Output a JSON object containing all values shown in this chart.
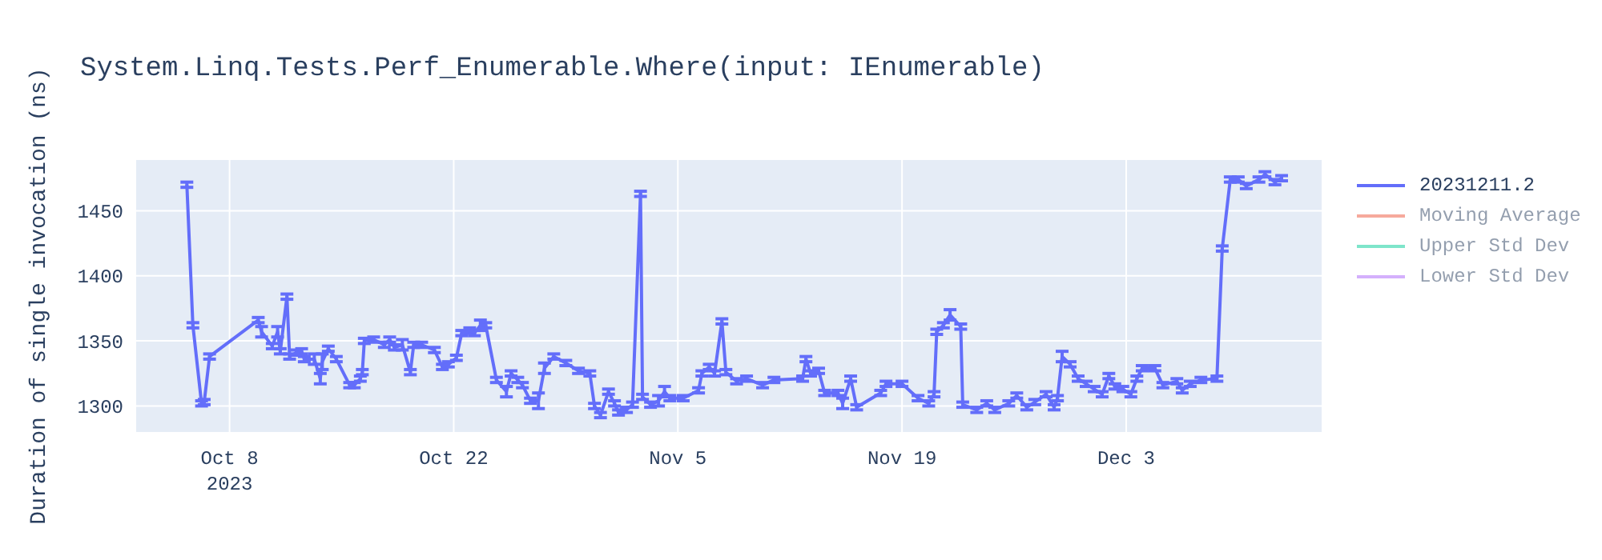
{
  "chart_data": {
    "type": "line",
    "title": "System.Linq.Tests.Perf_Enumerable.Where(input: IEnumerable)",
    "ylabel": "Duration of single invocation (ns)",
    "xlim": [
      "2023-10-02T04:00",
      "2023-12-15T05:00"
    ],
    "xticks": [
      {
        "value": "2023-10-08",
        "label": "Oct 8\n2023"
      },
      {
        "value": "2023-10-22",
        "label": "Oct 22"
      },
      {
        "value": "2023-11-05",
        "label": "Nov 5"
      },
      {
        "value": "2023-11-19",
        "label": "Nov 19"
      },
      {
        "value": "2023-12-03",
        "label": "Dec 3"
      }
    ],
    "ylim": [
      1280,
      1489
    ],
    "yticks": [
      1300,
      1350,
      1400,
      1450
    ],
    "grid": true,
    "legend": "top right",
    "series": [
      {
        "name": "20231211.2",
        "color": "#636efa",
        "x": [
          "2023-10-05T08:00",
          "2023-10-05T17:00",
          "2023-10-06T06:00",
          "2023-10-06T10:00",
          "2023-10-06T18:00",
          "2023-10-09T19:00",
          "2023-10-10T00:00",
          "2023-10-10T16:00",
          "2023-10-11T00:00",
          "2023-10-11T04:00",
          "2023-10-11T14:00",
          "2023-10-11T18:00",
          "2023-10-12T04:00",
          "2023-10-12T12:00",
          "2023-10-12T16:00",
          "2023-10-13T07:00",
          "2023-10-13T16:00",
          "2023-10-13T19:00",
          "2023-10-14T04:00",
          "2023-10-14T16:00",
          "2023-10-15T12:00",
          "2023-10-15T19:00",
          "2023-10-16T04:00",
          "2023-10-16T07:00",
          "2023-10-16T10:00",
          "2023-10-17T00:00",
          "2023-10-17T16:00",
          "2023-10-18T00:00",
          "2023-10-18T07:00",
          "2023-10-18T19:00",
          "2023-10-19T07:00",
          "2023-10-19T12:00",
          "2023-10-20T00:00",
          "2023-10-20T19:00",
          "2023-10-21T07:00",
          "2023-10-21T16:00",
          "2023-10-22T04:00",
          "2023-10-22T12:00",
          "2023-10-23T00:00",
          "2023-10-23T07:00",
          "2023-10-23T16:00",
          "2023-10-24T00:00",
          "2023-10-24T16:00",
          "2023-10-25T07:00",
          "2023-10-25T14:00",
          "2023-10-26T00:00",
          "2023-10-26T07:00",
          "2023-10-26T19:00",
          "2023-10-27T07:00",
          "2023-10-27T16:00",
          "2023-10-28T06:00",
          "2023-10-29T00:00",
          "2023-10-29T19:00",
          "2023-10-30T12:00",
          "2023-10-30T19:00",
          "2023-10-31T04:00",
          "2023-10-31T16:00",
          "2023-11-01T01:00",
          "2023-11-01T07:00",
          "2023-11-01T19:00",
          "2023-11-02T04:00",
          "2023-11-02T16:00",
          "2023-11-02T19:00",
          "2023-11-03T07:00",
          "2023-11-03T19:00",
          "2023-11-04T04:00",
          "2023-11-04T12:00",
          "2023-11-05T08:00",
          "2023-11-06T07:00",
          "2023-11-06T12:00",
          "2023-11-06T23:00",
          "2023-11-07T07:00",
          "2023-11-07T18:00",
          "2023-11-08T00:00",
          "2023-11-08T16:00",
          "2023-11-09T07:00",
          "2023-11-10T07:00",
          "2023-11-11T00:00",
          "2023-11-12T19:00",
          "2023-11-13T00:00",
          "2023-11-13T07:00",
          "2023-11-13T19:00",
          "2023-11-14T04:00",
          "2023-11-15T00:00",
          "2023-11-15T07:00",
          "2023-11-15T19:00",
          "2023-11-16T04:00",
          "2023-11-17T16:00",
          "2023-11-18T00:00",
          "2023-11-19T00:00",
          "2023-11-20T00:00",
          "2023-11-20T16:00",
          "2023-11-21T00:00",
          "2023-11-21T04:00",
          "2023-11-21T14:00",
          "2023-11-22T00:00",
          "2023-11-22T16:00",
          "2023-11-22T19:00",
          "2023-11-23T16:00",
          "2023-11-24T07:00",
          "2023-11-24T19:00",
          "2023-11-25T16:00",
          "2023-11-26T04:00",
          "2023-11-26T19:00",
          "2023-11-27T07:00",
          "2023-11-28T00:00",
          "2023-11-28T12:00",
          "2023-11-28T17:00",
          "2023-11-29T00:00",
          "2023-11-29T12:00",
          "2023-11-30T00:00",
          "2023-11-30T12:00",
          "2023-12-01T00:00",
          "2023-12-01T12:00",
          "2023-12-01T22:00",
          "2023-12-02T07:00",
          "2023-12-02T19:00",
          "2023-12-03T07:00",
          "2023-12-03T16:00",
          "2023-12-04T00:00",
          "2023-12-04T19:00",
          "2023-12-05T07:00",
          "2023-12-06T04:00",
          "2023-12-06T12:00",
          "2023-12-07T00:00",
          "2023-12-07T16:00",
          "2023-12-08T16:00",
          "2023-12-09T00:00",
          "2023-12-09T12:00",
          "2023-12-10T00:00",
          "2023-12-10T12:00",
          "2023-12-11T07:00",
          "2023-12-11T16:00",
          "2023-12-12T07:00",
          "2023-12-12T17:00"
        ],
        "values": [
          1470,
          1362,
          1302,
          1303,
          1338,
          1366,
          1357,
          1346,
          1357,
          1342,
          1384,
          1338,
          1341,
          1342,
          1336,
          1336,
          1321,
          1334,
          1344,
          1336,
          1316,
          1316,
          1321,
          1326,
          1350,
          1351,
          1347,
          1351,
          1345,
          1347,
          1326,
          1347,
          1347,
          1343,
          1330,
          1332,
          1337,
          1356,
          1358,
          1356,
          1362,
          1362,
          1320,
          1311,
          1325,
          1320,
          1316,
          1304,
          1304,
          1329,
          1338,
          1333,
          1327,
          1325,
          1300,
          1293,
          1311,
          1302,
          1295,
          1297,
          1301,
          1463,
          1307,
          1301,
          1304,
          1311,
          1306,
          1306,
          1312,
          1325,
          1330,
          1325,
          1365,
          1326,
          1319,
          1321,
          1316,
          1320,
          1321,
          1336,
          1325,
          1327,
          1310,
          1310,
          1302,
          1321,
          1299,
          1310,
          1317,
          1317,
          1306,
          1302,
          1309,
          1357,
          1362,
          1370,
          1361,
          1301,
          1297,
          1302,
          1297,
          1302,
          1308,
          1299,
          1303,
          1309,
          1299,
          1306,
          1338,
          1332,
          1321,
          1317,
          1313,
          1309,
          1323,
          1315,
          1313,
          1309,
          1321,
          1329,
          1329,
          1316,
          1319,
          1312,
          1317,
          1320,
          1321,
          1421,
          1474,
          1474,
          1469,
          1474,
          1478,
          1472,
          1475
        ],
        "errors": [
          2,
          2,
          2,
          2,
          2,
          2,
          4,
          2,
          4,
          2,
          2,
          2,
          2,
          2,
          2,
          4,
          4,
          6,
          2,
          2,
          2,
          2,
          2,
          2,
          2,
          2,
          2,
          2,
          2,
          4,
          2,
          2,
          2,
          2,
          2,
          2,
          2,
          2,
          2,
          2,
          4,
          2,
          2,
          4,
          2,
          2,
          2,
          2,
          6,
          4,
          2,
          2,
          2,
          2,
          2,
          2,
          2,
          2,
          2,
          2,
          2,
          2,
          2,
          2,
          4,
          4,
          2,
          2,
          2,
          2,
          2,
          2,
          2,
          2,
          2,
          2,
          2,
          2,
          2,
          2,
          2,
          2,
          2,
          2,
          4,
          2,
          2,
          2,
          2,
          2,
          2,
          2,
          2,
          2,
          2,
          4,
          2,
          2,
          2,
          2,
          2,
          2,
          2,
          2,
          2,
          2,
          2,
          2,
          4,
          2,
          2,
          2,
          2,
          2,
          2,
          2,
          2,
          2,
          2,
          2,
          2,
          2,
          2,
          2,
          2,
          2,
          2,
          2,
          2,
          2,
          2,
          2,
          2,
          2,
          2
        ]
      },
      {
        "name": "Moving Average",
        "color": "#ef553b"
      },
      {
        "name": "Upper Std Dev",
        "color": "#00cc96"
      },
      {
        "name": "Lower Std Dev",
        "color": "#ab63fa"
      }
    ]
  }
}
